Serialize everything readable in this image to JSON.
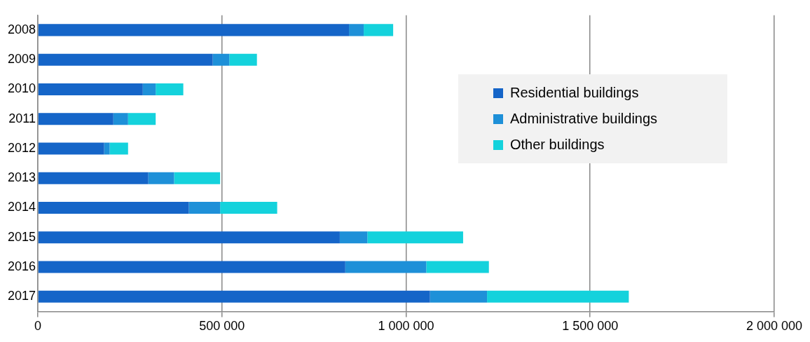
{
  "chart_data": {
    "type": "bar",
    "orientation": "horizontal",
    "stacked": true,
    "categories": [
      "2008",
      "2009",
      "2010",
      "2011",
      "2012",
      "2013",
      "2014",
      "2015",
      "2016",
      "2017"
    ],
    "series": [
      {
        "name": "Residential buildings",
        "color": "#1565c8",
        "values": [
          845000,
          475000,
          285000,
          205000,
          180000,
          300000,
          410000,
          820000,
          835000,
          1065000
        ]
      },
      {
        "name": "Administrative buildings",
        "color": "#1e90d8",
        "values": [
          40000,
          45000,
          35000,
          40000,
          15000,
          70000,
          85000,
          75000,
          220000,
          155000
        ]
      },
      {
        "name": "Other buildings",
        "color": "#14d2dc",
        "values": [
          80000,
          75000,
          75000,
          75000,
          50000,
          125000,
          155000,
          260000,
          170000,
          385000
        ]
      }
    ],
    "xlim": [
      0,
      2000000
    ],
    "xticks": [
      0,
      {
        "value": 500000,
        "label": "500 000"
      },
      {
        "value": 1000000,
        "label": "1 000 000"
      },
      {
        "value": 1500000,
        "label": "1 500 000"
      },
      {
        "value": 2000000,
        "label": "2 000 000"
      }
    ],
    "grid": "x",
    "legend": "right"
  }
}
